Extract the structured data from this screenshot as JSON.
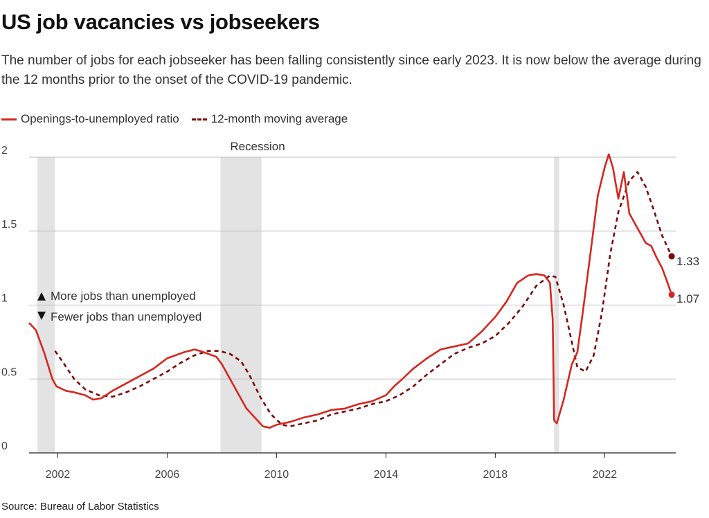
{
  "title": "US job vacancies vs jobseekers",
  "subtitle": "The number of jobs for each jobseeker has been falling consistently since early 2023. It is now below the average during the 12 months prior to the onset of the COVID-19 pandemic.",
  "legend": {
    "ratio_label": "Openings-to-unemployed ratio",
    "avg_label": "12-month moving average"
  },
  "source": "Source: Bureau of Labor Statistics",
  "annotations": {
    "recession": "Recession",
    "more_jobs": "More jobs than unemployed",
    "fewer_jobs": "Fewer jobs than unemployed",
    "last_avg": "1.33",
    "last_ratio": "1.07"
  },
  "colors": {
    "ratio": "#d7261e",
    "average": "#7a0a0a",
    "recession_band": "#e3e3e3",
    "grid": "#bbbbbb"
  },
  "chart_data": {
    "type": "line",
    "xlim": [
      2000.95,
      2024.6
    ],
    "ylim": [
      0,
      2
    ],
    "x_ticks": [
      2002,
      2006,
      2010,
      2014,
      2018,
      2022
    ],
    "y_ticks": [
      0,
      0.5,
      1,
      1.5,
      2
    ],
    "y_tick_labels": [
      "0",
      "0.5",
      "1",
      "1.5",
      "2"
    ],
    "grid": "horizontal",
    "recessions": [
      [
        2001.25,
        2001.9
      ],
      [
        2007.95,
        2009.45
      ],
      [
        2020.15,
        2020.33
      ]
    ],
    "series": [
      {
        "name": "Openings-to-unemployed ratio",
        "style": "solid",
        "x": [
          2000.95,
          2001.2,
          2001.5,
          2001.8,
          2001.95,
          2002.3,
          2002.6,
          2003.0,
          2003.3,
          2003.6,
          2004.0,
          2004.5,
          2005.0,
          2005.5,
          2006.0,
          2006.3,
          2006.6,
          2007.0,
          2007.2,
          2007.5,
          2007.8,
          2008.0,
          2008.3,
          2008.6,
          2008.9,
          2009.2,
          2009.5,
          2009.75,
          2010.0,
          2010.5,
          2011.0,
          2011.5,
          2012.0,
          2012.5,
          2013.0,
          2013.5,
          2014.0,
          2014.3,
          2014.6,
          2015.0,
          2015.5,
          2016.0,
          2016.5,
          2017.0,
          2017.5,
          2018.0,
          2018.4,
          2018.8,
          2019.2,
          2019.5,
          2019.8,
          2020.0,
          2020.1,
          2020.15,
          2020.25,
          2020.5,
          2020.8,
          2021.0,
          2021.2,
          2021.5,
          2021.75,
          2022.0,
          2022.15,
          2022.3,
          2022.5,
          2022.7,
          2022.9,
          2023.2,
          2023.5,
          2023.7,
          2023.9,
          2024.1,
          2024.3,
          2024.45
        ],
        "values": [
          0.88,
          0.83,
          0.68,
          0.5,
          0.45,
          0.42,
          0.41,
          0.39,
          0.36,
          0.37,
          0.42,
          0.47,
          0.52,
          0.57,
          0.64,
          0.66,
          0.68,
          0.7,
          0.69,
          0.67,
          0.65,
          0.6,
          0.5,
          0.4,
          0.3,
          0.24,
          0.18,
          0.17,
          0.19,
          0.21,
          0.24,
          0.26,
          0.29,
          0.3,
          0.33,
          0.35,
          0.39,
          0.45,
          0.5,
          0.57,
          0.64,
          0.7,
          0.72,
          0.74,
          0.82,
          0.92,
          1.02,
          1.15,
          1.2,
          1.21,
          1.2,
          1.15,
          0.9,
          0.22,
          0.2,
          0.36,
          0.6,
          0.68,
          0.95,
          1.38,
          1.74,
          1.93,
          2.02,
          1.93,
          1.72,
          1.9,
          1.62,
          1.52,
          1.42,
          1.4,
          1.32,
          1.25,
          1.15,
          1.07
        ]
      },
      {
        "name": "12-month moving average",
        "style": "dashed",
        "x": [
          2001.9,
          2002.2,
          2002.6,
          2003.0,
          2003.5,
          2004.0,
          2004.5,
          2005.0,
          2005.5,
          2006.0,
          2006.5,
          2007.0,
          2007.5,
          2007.9,
          2008.3,
          2008.7,
          2009.0,
          2009.4,
          2009.8,
          2010.2,
          2010.5,
          2011.0,
          2011.5,
          2012.0,
          2012.5,
          2013.0,
          2013.5,
          2014.0,
          2014.5,
          2015.0,
          2015.5,
          2016.0,
          2016.5,
          2017.0,
          2017.5,
          2018.0,
          2018.5,
          2019.0,
          2019.5,
          2020.0,
          2020.2,
          2020.5,
          2020.8,
          2021.0,
          2021.3,
          2021.6,
          2021.9,
          2022.2,
          2022.5,
          2022.9,
          2023.2,
          2023.5,
          2023.8,
          2024.1,
          2024.45
        ],
        "values": [
          0.69,
          0.61,
          0.5,
          0.43,
          0.39,
          0.38,
          0.41,
          0.45,
          0.5,
          0.55,
          0.61,
          0.66,
          0.69,
          0.69,
          0.67,
          0.62,
          0.53,
          0.38,
          0.26,
          0.19,
          0.18,
          0.2,
          0.22,
          0.26,
          0.28,
          0.3,
          0.33,
          0.35,
          0.39,
          0.45,
          0.53,
          0.6,
          0.67,
          0.71,
          0.74,
          0.79,
          0.88,
          0.99,
          1.13,
          1.2,
          1.19,
          1.0,
          0.75,
          0.58,
          0.55,
          0.66,
          0.95,
          1.34,
          1.63,
          1.84,
          1.9,
          1.8,
          1.64,
          1.47,
          1.33
        ]
      }
    ]
  }
}
